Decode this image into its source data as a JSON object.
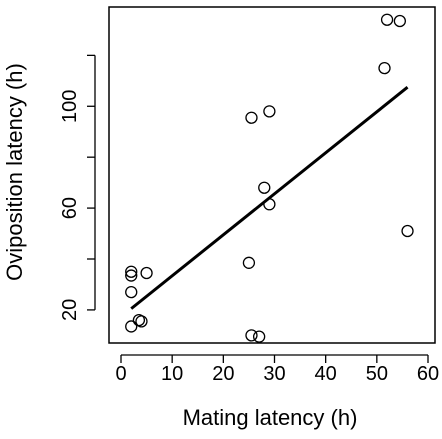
{
  "chart_data": {
    "type": "scatter",
    "title": "",
    "xlabel": "Mating latency (h)",
    "ylabel": "Oviposition latency (h)",
    "xlim": [
      0,
      60
    ],
    "ylim": [
      7,
      139
    ],
    "x_ticks": [
      0,
      10,
      20,
      30,
      40,
      50,
      60
    ],
    "y_ticks": [
      20,
      60,
      100
    ],
    "y_minor_ticks": [
      40,
      80,
      120
    ],
    "grid": false,
    "legend": "none",
    "point_style": "open-circle",
    "points": [
      {
        "x": 2.0,
        "y": 13.5
      },
      {
        "x": 3.5,
        "y": 16.0
      },
      {
        "x": 4.0,
        "y": 15.5
      },
      {
        "x": 2.0,
        "y": 27.0
      },
      {
        "x": 2.0,
        "y": 33.5
      },
      {
        "x": 2.0,
        "y": 35.0
      },
      {
        "x": 5.0,
        "y": 34.5
      },
      {
        "x": 25.0,
        "y": 38.5
      },
      {
        "x": 25.5,
        "y": 10.0
      },
      {
        "x": 27.0,
        "y": 9.5
      },
      {
        "x": 25.5,
        "y": 95.5
      },
      {
        "x": 29.0,
        "y": 98.0
      },
      {
        "x": 28.0,
        "y": 68.0
      },
      {
        "x": 29.0,
        "y": 61.5
      },
      {
        "x": 51.5,
        "y": 115.0
      },
      {
        "x": 52.0,
        "y": 134.0
      },
      {
        "x": 54.5,
        "y": 133.5
      },
      {
        "x": 56.0,
        "y": 51.0
      }
    ],
    "fit_line": {
      "x": [
        2.0,
        56.0
      ],
      "y": [
        20.5,
        107.5
      ]
    }
  }
}
